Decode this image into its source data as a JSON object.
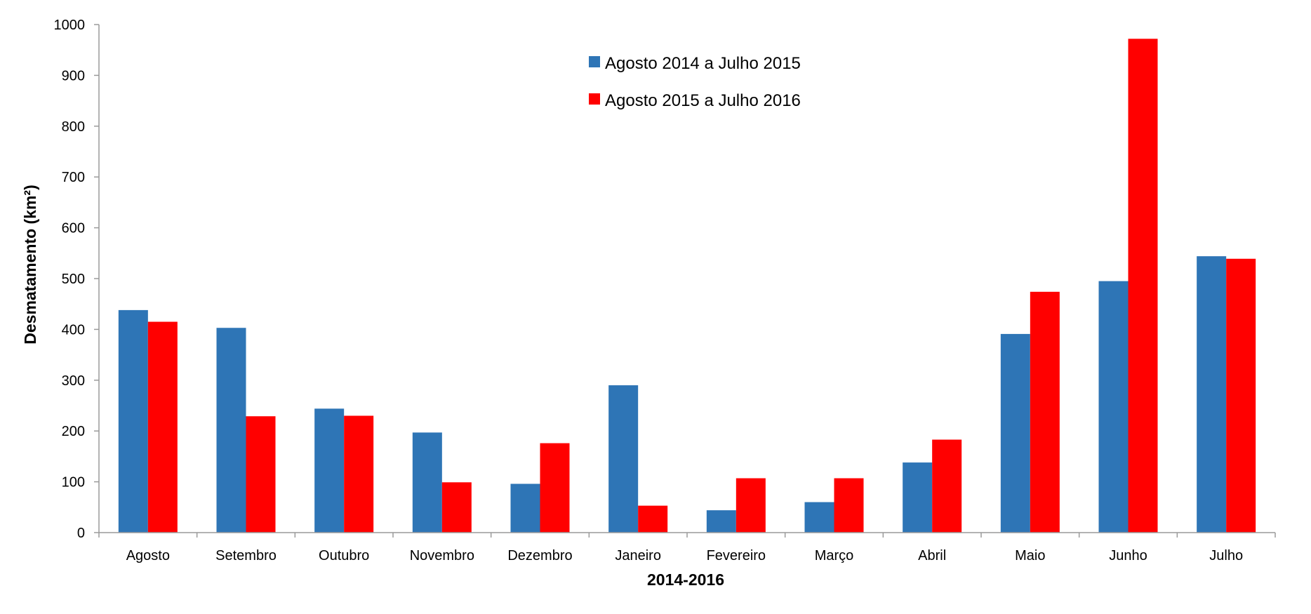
{
  "chart_data": {
    "type": "bar",
    "title": "",
    "xlabel": "2014-2016",
    "ylabel": "Desmatamento (km²)",
    "ylim": [
      0,
      1000
    ],
    "yticks": [
      0,
      100,
      200,
      300,
      400,
      500,
      600,
      700,
      800,
      900,
      1000
    ],
    "grid": false,
    "legend_position": "top-center",
    "categories": [
      "Agosto",
      "Setembro",
      "Outubro",
      "Novembro",
      "Dezembro",
      "Janeiro",
      "Fevereiro",
      "Março",
      "Abril",
      "Maio",
      "Junho",
      "Julho"
    ],
    "series": [
      {
        "name": "Agosto 2014 a Julho 2015",
        "color": "#2E75B6",
        "values": [
          438,
          403,
          244,
          197,
          96,
          290,
          44,
          60,
          138,
          391,
          495,
          544
        ]
      },
      {
        "name": "Agosto 2015 a Julho 2016",
        "color": "#FF0000",
        "values": [
          415,
          229,
          230,
          99,
          176,
          53,
          107,
          107,
          183,
          474,
          972,
          539
        ]
      }
    ]
  }
}
